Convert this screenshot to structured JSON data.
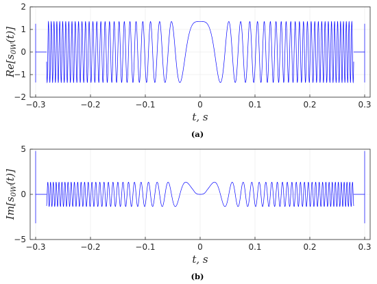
{
  "colors": {
    "line": "#0000ff",
    "grid": "#e6e6e6",
    "axis": "#262626"
  },
  "chart_data": [
    {
      "type": "line",
      "caption": "(a)",
      "ylabel": "Re[s0W(t)]",
      "xlabel": "t, s",
      "xlim": [
        -0.31,
        0.31
      ],
      "ylim": [
        -2,
        2
      ],
      "xticks": [
        -0.3,
        -0.2,
        -0.1,
        0,
        0.1,
        0.2,
        0.3
      ],
      "xtick_labels": [
        "-0.3",
        "-0.2",
        "-0.1",
        "0",
        "0.1",
        "0.2",
        "0.3"
      ],
      "yticks": [
        -2,
        -1,
        0,
        1,
        2
      ],
      "ytick_labels": [
        "-2",
        "-1",
        "0",
        "1",
        "2"
      ],
      "grid": true,
      "series": [
        {
          "signal_support": [
            -0.28,
            0.28
          ],
          "envelope_amplitude": 1.35,
          "center_value": 1.35,
          "edge_spikes": [
            {
              "x": -0.3,
              "min": -1.35,
              "max": 1.25
            },
            {
              "x": 0.3,
              "min": -1.35,
              "max": 1.25
            }
          ]
        }
      ]
    },
    {
      "type": "line",
      "caption": "(b)",
      "ylabel": "Im[s0W(t)]",
      "xlabel": "t, s",
      "xlim": [
        -0.31,
        0.31
      ],
      "ylim": [
        -5,
        5
      ],
      "xticks": [
        -0.3,
        -0.2,
        -0.1,
        0,
        0.1,
        0.2,
        0.3
      ],
      "xtick_labels": [
        "-0.3",
        "-0.2",
        "-0.1",
        "0",
        "0.1",
        "0.2",
        "0.3"
      ],
      "yticks": [
        -5,
        0,
        5
      ],
      "ytick_labels": [
        "-5",
        "0",
        "5"
      ],
      "grid": true,
      "series": [
        {
          "signal_support": [
            -0.28,
            0.28
          ],
          "envelope_amplitude": 1.35,
          "center_value": 0,
          "edge_spikes": [
            {
              "x": -0.3,
              "min": -3.2,
              "max": 4.8
            },
            {
              "x": 0.3,
              "min": -3.2,
              "max": 4.8
            }
          ]
        }
      ]
    }
  ]
}
